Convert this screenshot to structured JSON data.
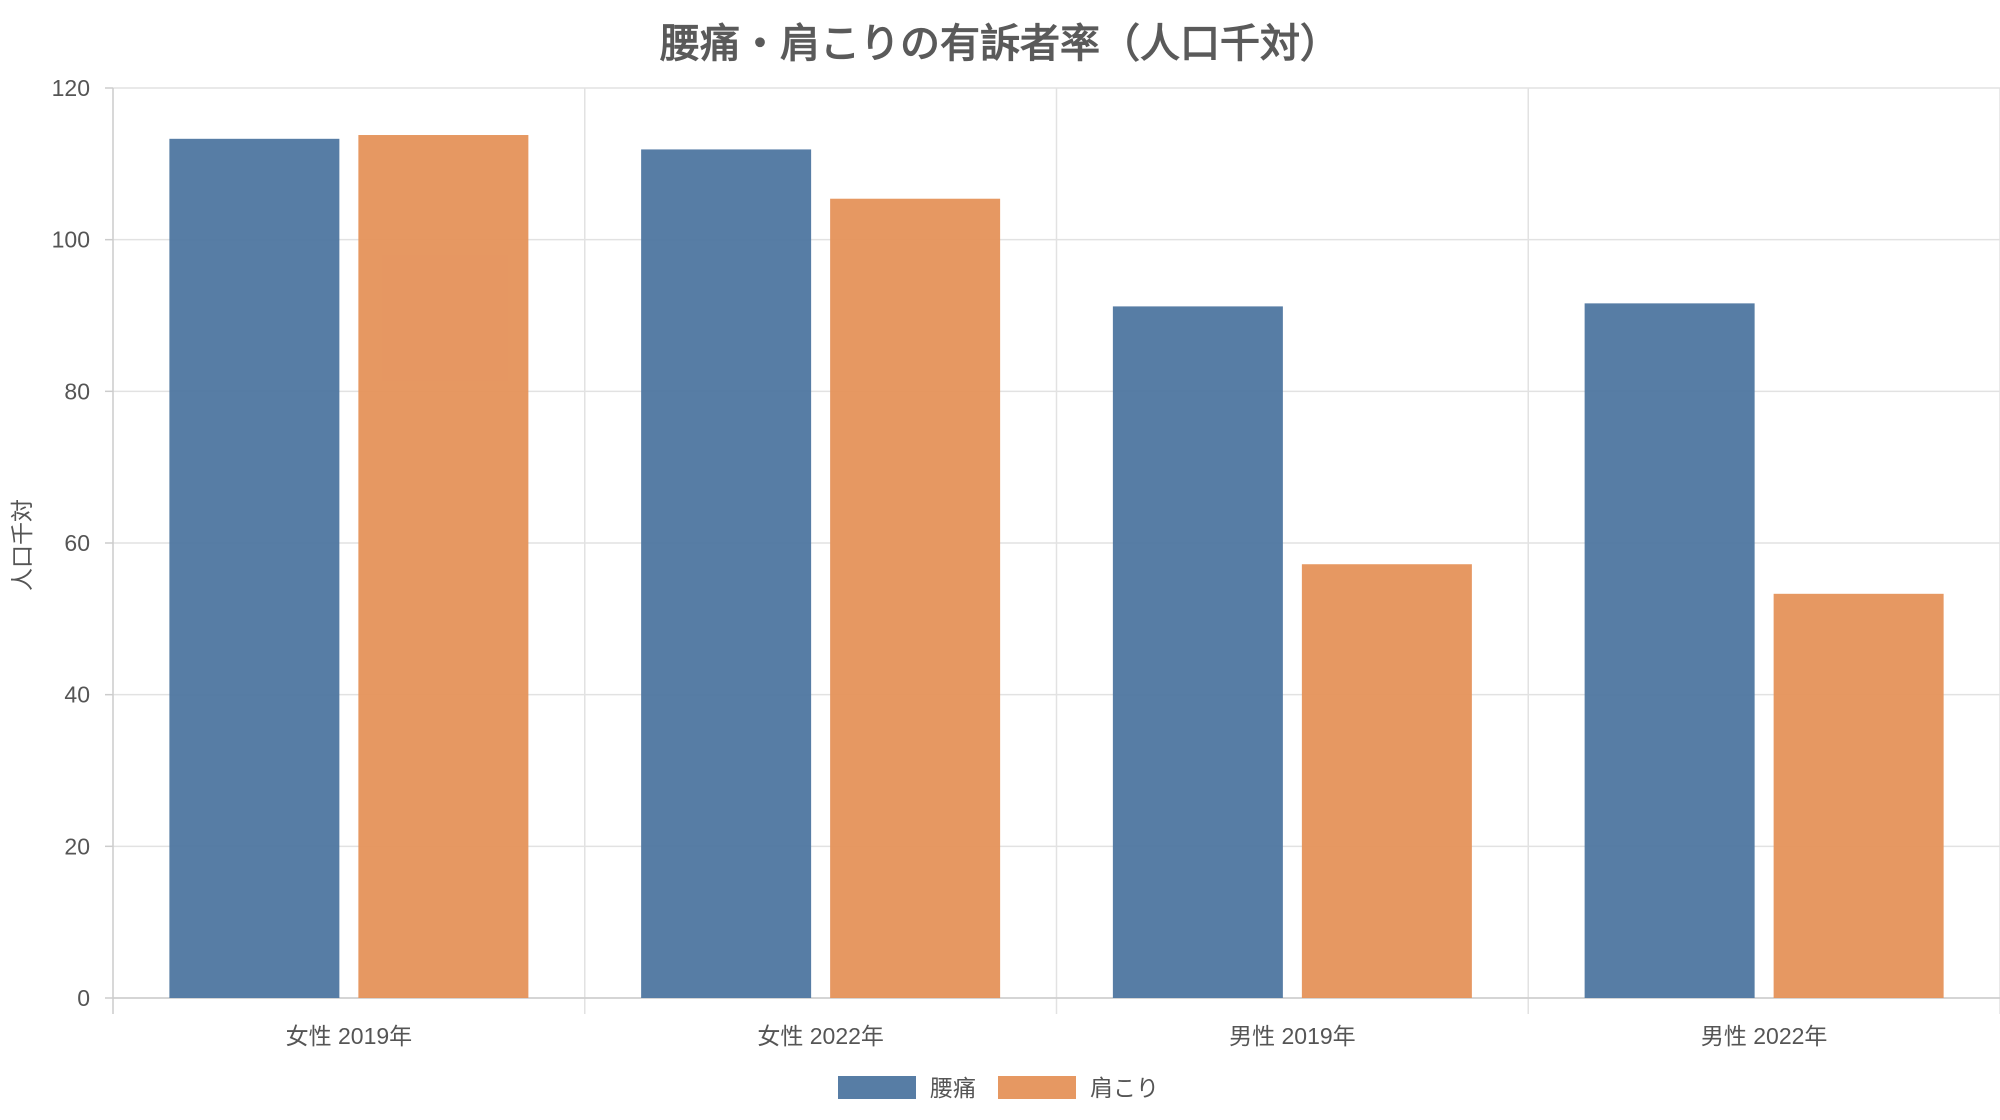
{
  "chart_data": {
    "type": "bar",
    "title": "腰痛・肩こりの有訴者率（人口千対）",
    "ylabel": "人口千対",
    "xlabel": "",
    "categories": [
      "女性 2019年",
      "女性 2022年",
      "男性 2019年",
      "男性 2022年"
    ],
    "series": [
      {
        "name": "腰痛",
        "color": "#4e76a0",
        "values": [
          113.3,
          111.9,
          91.2,
          91.6
        ]
      },
      {
        "name": "肩こり",
        "color": "#e5925a",
        "values": [
          113.8,
          105.4,
          57.2,
          53.3
        ]
      }
    ],
    "ylim": [
      0,
      120
    ],
    "yticks": [
      0,
      20,
      40,
      60,
      80,
      100,
      120
    ],
    "grid": true,
    "legend_position": "bottom-center"
  }
}
